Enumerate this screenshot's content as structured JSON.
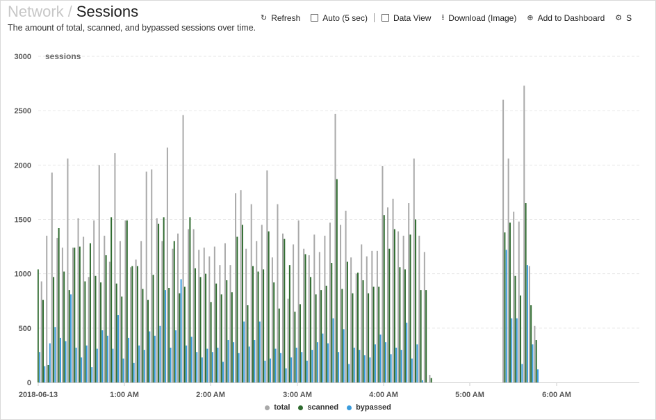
{
  "header": {
    "parent": "Network",
    "separator": "/",
    "title": "Sessions"
  },
  "subtitle": "The amount of total, scanned, and bypassed sessions over time.",
  "toolbar": {
    "refresh": "Refresh",
    "auto": "Auto (5 sec)",
    "data_view": "Data View",
    "download": "Download (Image)",
    "add_dashboard": "Add to Dashboard",
    "settings": "S"
  },
  "colors": {
    "total": "#a9a9a9",
    "scanned": "#2f6b2f",
    "bypassed": "#3a9bdc",
    "grid": "#e6e6e6"
  },
  "icons": {
    "refresh": "refresh-icon",
    "download": "download-icon",
    "add": "plus-circle-icon",
    "settings": "gear-icon"
  },
  "chart_data": {
    "type": "bar",
    "ylabel": "sessions",
    "ylim": [
      0,
      3000
    ],
    "yticks": [
      0,
      500,
      1000,
      1500,
      2000,
      2500,
      3000
    ],
    "xticks": [
      "2018-06-13",
      "1:00 AM",
      "2:00 AM",
      "3:00 AM",
      "4:00 AM",
      "5:00 AM",
      "6:00 AM"
    ],
    "grid": true,
    "legend_position": "bottom",
    "series": [
      {
        "name": "total",
        "values": [
          930,
          1350,
          1930,
          1330,
          1240,
          2060,
          1240,
          1510,
          1340,
          970,
          1490,
          2000,
          1350,
          1110,
          2110,
          1300,
          1490,
          1060,
          1130,
          1300,
          1940,
          1960,
          1510,
          1300,
          2160,
          1230,
          1370,
          2460,
          1410,
          1410,
          1220,
          1240,
          1160,
          1250,
          1080,
          1280,
          1080,
          1740,
          1770,
          1230,
          1640,
          1300,
          1450,
          1950,
          1150,
          1640,
          1370,
          770,
          1270,
          1490,
          1230,
          1170,
          1360,
          1200,
          1350,
          1470,
          2470,
          1450,
          1580,
          1150,
          1000,
          1270,
          1160,
          1210,
          1210,
          1990,
          1610,
          1690,
          1390,
          1350,
          1650,
          2060,
          1350,
          1200,
          70,
          0,
          0,
          0,
          0,
          0,
          0,
          0,
          0,
          0,
          0,
          0,
          0,
          0,
          2600,
          2060,
          1570,
          1480,
          2730,
          1070,
          520
        ]
      },
      {
        "name": "scanned",
        "values": [
          760,
          160,
          970,
          1420,
          1020,
          850,
          1240,
          1250,
          930,
          1280,
          980,
          920,
          1170,
          1520,
          910,
          790,
          1490,
          1070,
          1070,
          860,
          760,
          990,
          1460,
          1520,
          870,
          1300,
          820,
          880,
          1520,
          1050,
          970,
          1000,
          740,
          910,
          810,
          940,
          830,
          1340,
          1450,
          710,
          1070,
          1020,
          1040,
          1390,
          920,
          680,
          1320,
          1080,
          650,
          720,
          1180,
          970,
          810,
          850,
          890,
          1100,
          1870,
          860,
          1110,
          820,
          1010,
          940,
          820,
          880,
          880,
          1540,
          1230,
          1410,
          1060,
          1040,
          1360,
          1500,
          850,
          850,
          40,
          0,
          0,
          0,
          0,
          0,
          0,
          0,
          0,
          0,
          0,
          0,
          0,
          0,
          1380,
          1470,
          980,
          800,
          1650,
          710,
          390
        ]
      },
      {
        "name": "bypassed",
        "values": [
          150,
          360,
          510,
          410,
          380,
          810,
          320,
          230,
          340,
          140,
          310,
          480,
          430,
          310,
          620,
          220,
          410,
          180,
          340,
          300,
          470,
          430,
          520,
          850,
          320,
          480,
          950,
          340,
          420,
          280,
          230,
          310,
          280,
          320,
          190,
          390,
          370,
          270,
          560,
          330,
          390,
          560,
          200,
          220,
          310,
          270,
          130,
          230,
          320,
          280,
          200,
          300,
          370,
          450,
          360,
          590,
          280,
          490,
          170,
          320,
          300,
          250,
          230,
          350,
          440,
          370,
          260,
          320,
          300,
          550,
          220,
          350,
          20,
          0,
          0,
          0,
          0,
          0,
          0,
          0,
          0,
          0,
          0,
          0,
          0,
          0,
          0,
          0,
          1220,
          590,
          590,
          170,
          1080,
          350,
          120
        ]
      }
    ]
  }
}
